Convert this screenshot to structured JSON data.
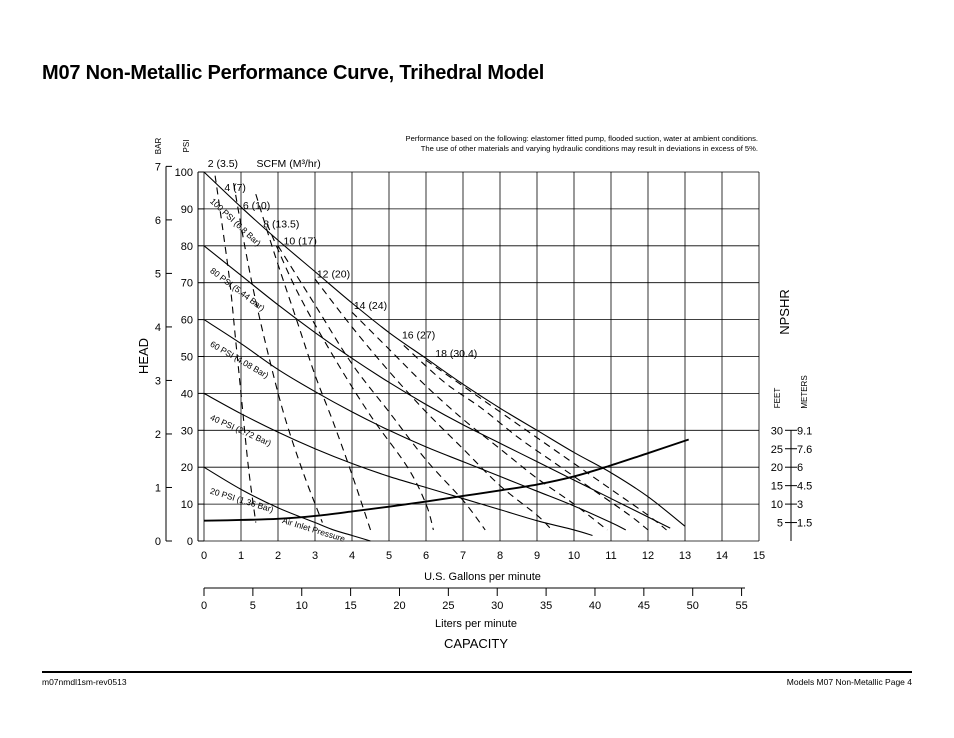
{
  "page": {
    "title": "M07 Non-Metallic Performance Curve, Trihedral Model",
    "note_line1": "Performance based on the following: elastomer fitted pump, flooded suction, water at ambient conditions.",
    "note_line2": "The use of other materials and varying hydraulic conditions may result in deviations in excess of 5%.",
    "footer_left": "m07nmdl1sm-rev0513",
    "footer_right": "Models M07 Non-Metallic Page 4"
  },
  "chart_data": {
    "type": "line",
    "title": "",
    "xlabel": "U.S. Gallons per minute",
    "ylabel": "HEAD",
    "xlim": [
      0,
      15
    ],
    "ylim": [
      0,
      100
    ],
    "grid": true,
    "x_ticks": [
      "0",
      "1",
      "2",
      "3",
      "4",
      "5",
      "6",
      "7",
      "8",
      "9",
      "10",
      "11",
      "12",
      "13",
      "14",
      "15"
    ],
    "psi_axis_label": "PSI",
    "psi_ticks": [
      "0",
      "10",
      "20",
      "30",
      "40",
      "50",
      "60",
      "70",
      "80",
      "90",
      "100"
    ],
    "bar_axis_label": "BAR",
    "bar_ticks": [
      "0",
      "1",
      "2",
      "3",
      "4",
      "5",
      "6",
      "7"
    ],
    "liters_axis_label": "Liters per minute",
    "liters_ticks": [
      "0",
      "5",
      "10",
      "15",
      "20",
      "25",
      "30",
      "35",
      "40",
      "45",
      "50",
      "55"
    ],
    "capacity_label": "CAPACITY",
    "npshr": {
      "label": "NPSHR",
      "feet_label": "FEET",
      "meters_label": "METERS",
      "feet_ticks": [
        "30",
        "25",
        "20",
        "15",
        "10",
        "5"
      ],
      "meters_ticks": [
        "9.1",
        "7.6",
        "6",
        "4.5",
        "3",
        "1.5"
      ]
    },
    "scfm_header": "SCFM (M³/hr)",
    "air_inlet_label": "Air Inlet Pressure",
    "series": [
      {
        "name": "100 PSI (6.8 Bar)",
        "style": "solid",
        "x": [
          0,
          1,
          2,
          3,
          4,
          5,
          6,
          7,
          8,
          9,
          10,
          11,
          12,
          13
        ],
        "y": [
          100,
          90.5,
          81.5,
          73,
          64.5,
          56.5,
          49.5,
          42.5,
          36,
          30,
          24,
          18.5,
          12,
          4
        ]
      },
      {
        "name": "80 PSI (5.44 Bar)",
        "style": "solid",
        "x": [
          0,
          1,
          2,
          3,
          4,
          5,
          6,
          7,
          8,
          9,
          10,
          11,
          12,
          12.6
        ],
        "y": [
          80,
          72,
          64,
          56.5,
          49.5,
          43,
          37,
          31.5,
          26.5,
          21.5,
          16.5,
          11.5,
          6.5,
          3.5
        ]
      },
      {
        "name": "60 PSI (4.08 Bar)",
        "style": "solid",
        "x": [
          0,
          1,
          2,
          3,
          4,
          5,
          6,
          7,
          8,
          9,
          10,
          11,
          11.4
        ],
        "y": [
          60,
          53.5,
          46.5,
          40.5,
          35,
          30,
          25.5,
          21.5,
          17.5,
          13.5,
          9.5,
          5,
          3
        ]
      },
      {
        "name": "40 PSI (2.72 Bar)",
        "style": "solid",
        "x": [
          0,
          1,
          2,
          3,
          4,
          5,
          6,
          7,
          8,
          9,
          10,
          10.5
        ],
        "y": [
          40,
          34.5,
          29.5,
          25,
          21,
          17.5,
          14.5,
          11.5,
          8.5,
          5.5,
          3,
          1.5
        ]
      },
      {
        "name": "20 PSI (1.36 Bar)",
        "style": "solid",
        "x": [
          0,
          1,
          2,
          3,
          3.5,
          4,
          4.5
        ],
        "y": [
          20,
          14,
          9,
          5,
          3,
          1.5,
          0
        ]
      },
      {
        "name": "2 (3.5)",
        "style": "dashed",
        "x": [
          0.3,
          0.5,
          0.7,
          0.85,
          1.0,
          1.2,
          1.4
        ],
        "y": [
          99,
          85,
          70,
          55,
          40,
          20,
          5
        ]
      },
      {
        "name": "4 (7)",
        "style": "dashed",
        "x": [
          0.8,
          1.1,
          1.4,
          1.8,
          2.2,
          2.7,
          3.2
        ],
        "y": [
          97,
          80,
          65,
          48,
          33,
          18,
          5
        ]
      },
      {
        "name": "6 (10)",
        "style": "dashed",
        "x": [
          1.4,
          1.9,
          2.5,
          3.0,
          3.5,
          4.0,
          4.5
        ],
        "y": [
          94,
          78,
          60,
          45,
          32,
          18,
          3
        ]
      },
      {
        "name": "8 (13.5)",
        "style": "dashed",
        "x": [
          1.7,
          2.5,
          3.5,
          4.5,
          5.5,
          6.0,
          6.2
        ],
        "y": [
          86,
          68,
          50,
          34,
          20,
          10,
          3
        ]
      },
      {
        "name": "10 (17)",
        "style": "dashed",
        "x": [
          2.0,
          3.0,
          4.0,
          5.0,
          6.0,
          7.0,
          7.6
        ],
        "y": [
          80,
          64,
          48,
          35,
          22,
          11,
          3
        ]
      },
      {
        "name": "12 (20)",
        "style": "dashed",
        "x": [
          3.0,
          4.0,
          5.0,
          6.0,
          7.0,
          8.0,
          9.0,
          9.4
        ],
        "y": [
          71,
          58,
          46,
          35,
          25,
          15,
          7,
          3
        ]
      },
      {
        "name": "14 (24)",
        "style": "dashed",
        "x": [
          4.0,
          5.0,
          6.0,
          7.0,
          8.0,
          9.0,
          10.0,
          10.9
        ],
        "y": [
          62,
          52,
          42,
          33,
          25,
          17,
          10,
          3
        ]
      },
      {
        "name": "16 (27)",
        "style": "dashed",
        "x": [
          5.4,
          6.5,
          7.5,
          8.5,
          9.5,
          10.5,
          11.5,
          12.0
        ],
        "y": [
          53,
          43,
          36,
          28,
          21,
          14,
          7,
          3
        ]
      },
      {
        "name": "18 (30.4)",
        "style": "dashed",
        "x": [
          6.0,
          7.0,
          8.0,
          9.0,
          10.0,
          11.0,
          12.0,
          12.5
        ],
        "y": [
          49,
          42,
          35,
          28,
          21,
          14,
          7,
          3
        ]
      },
      {
        "name": "NPSHR",
        "style": "solid-bold",
        "x": [
          0,
          1,
          2,
          3,
          4,
          5,
          6,
          7,
          8,
          9,
          10,
          11,
          12,
          13.1
        ],
        "y": [
          5.5,
          5.7,
          6,
          6.8,
          8,
          9.3,
          10.7,
          12.2,
          13.7,
          15.3,
          17.5,
          20.5,
          23.8,
          27.5
        ]
      }
    ],
    "curve_labels": [
      {
        "text": "2 (3.5)",
        "x": 0.1,
        "y": 102.5,
        "rotate": 0
      },
      {
        "text": "4 (7)",
        "x": 0.55,
        "y": 96,
        "rotate": 0
      },
      {
        "text": "6 (10)",
        "x": 1.05,
        "y": 91,
        "rotate": 0
      },
      {
        "text": "8 (13.5)",
        "x": 1.6,
        "y": 86,
        "rotate": 0
      },
      {
        "text": "10 (17)",
        "x": 2.15,
        "y": 81.5,
        "rotate": 0
      },
      {
        "text": "12 (20)",
        "x": 3.05,
        "y": 72.5,
        "rotate": 0
      },
      {
        "text": "14 (24)",
        "x": 4.05,
        "y": 64,
        "rotate": 0
      },
      {
        "text": "16 (27)",
        "x": 5.35,
        "y": 56,
        "rotate": 0
      },
      {
        "text": "18 (30.4)",
        "x": 6.25,
        "y": 51,
        "rotate": 0
      },
      {
        "text": "100 PSI (6.8 Bar)",
        "x": 0.15,
        "y": 93,
        "rotate": 43
      },
      {
        "text": "80 PSI (5.44 Bar)",
        "x": 0.15,
        "y": 74,
        "rotate": 37
      },
      {
        "text": "60 PSI (4.08 Bar)",
        "x": 0.15,
        "y": 54,
        "rotate": 30
      },
      {
        "text": "40 PSI (2.72 Bar)",
        "x": 0.15,
        "y": 34,
        "rotate": 24
      },
      {
        "text": "20 PSI (1.36 Bar)",
        "x": 0.15,
        "y": 14,
        "rotate": 17
      },
      {
        "text": "Air Inlet Pressure",
        "x": 2.1,
        "y": 6,
        "rotate": 17
      }
    ]
  }
}
